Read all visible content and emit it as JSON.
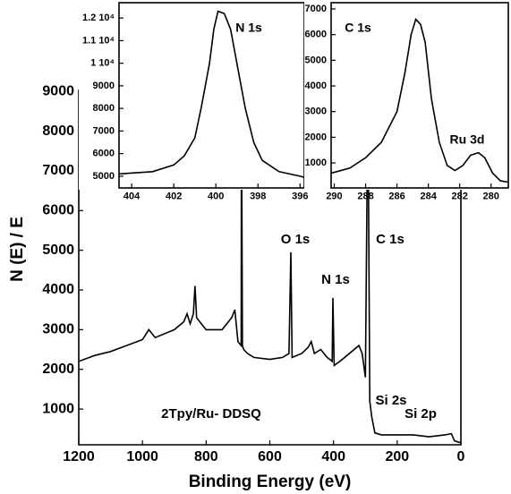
{
  "chart_data": [
    {
      "type": "line",
      "xlabel": "Binding Energy (eV)",
      "ylabel": "N (E) / E",
      "xlim": [
        1200,
        0
      ],
      "ylim": [
        100,
        9050
      ],
      "xticks": [
        1200,
        1000,
        800,
        600,
        400,
        200,
        0
      ],
      "yticks": [
        1000,
        2000,
        3000,
        4000,
        5000,
        6000,
        7000,
        8000,
        9000
      ],
      "annotations": [
        "O 1s",
        "C 1s",
        "N 1s",
        "Si 2s",
        "Si 2p",
        "2Tpy/Ru- DDSQ"
      ],
      "x": [
        1200,
        1150,
        1100,
        1050,
        1000,
        980,
        960,
        900,
        870,
        860,
        850,
        840,
        835,
        830,
        800,
        750,
        720,
        710,
        700,
        690,
        689,
        686,
        682,
        670,
        650,
        600,
        560,
        540,
        534,
        530,
        500,
        480,
        470,
        460,
        440,
        420,
        404,
        402,
        398,
        380,
        320,
        310,
        300,
        292,
        286,
        280,
        270,
        250,
        200,
        150,
        100,
        50,
        30,
        20,
        0
      ],
      "series": [
        {
          "color": "#000000",
          "values": [
            2200,
            2350,
            2450,
            2600,
            2750,
            3000,
            2800,
            3000,
            3200,
            3400,
            3150,
            3400,
            4100,
            3300,
            3000,
            3000,
            3300,
            3500,
            2700,
            2600,
            9000,
            2600,
            2500,
            2400,
            2300,
            2250,
            2300,
            2400,
            4950,
            2300,
            2400,
            2550,
            2700,
            2400,
            2500,
            2300,
            2200,
            3800,
            2100,
            2200,
            2600,
            2400,
            1800,
            9000,
            1200,
            800,
            400,
            350,
            350,
            350,
            300,
            350,
            380,
            200,
            150
          ]
        }
      ]
    },
    {
      "type": "line",
      "xlim": [
        404.6,
        395.8
      ],
      "ylim": [
        4480,
        12680
      ],
      "xticks": [
        404,
        402,
        400,
        398,
        396
      ],
      "yticks": [
        5000,
        6000,
        7000,
        8000,
        9000,
        {
          "value": 10000,
          "label": "1 10⁴"
        },
        {
          "value": 11000,
          "label": "1.1 10⁴"
        },
        {
          "value": 12000,
          "label": "1.2 10⁴"
        }
      ],
      "annotations": [
        "N 1s"
      ],
      "x": [
        404.6,
        403,
        402,
        401.5,
        401,
        400.7,
        400.3,
        400.1,
        399.9,
        399.6,
        399.3,
        399,
        398.6,
        398.2,
        397.8,
        397,
        396,
        395.8
      ],
      "series": [
        {
          "color": "#000000",
          "values": [
            5100,
            5200,
            5500,
            5900,
            6700,
            8000,
            10000,
            11500,
            12300,
            12200,
            11500,
            10000,
            8000,
            6500,
            5700,
            5200,
            5000,
            4950
          ]
        }
      ]
    },
    {
      "type": "line",
      "xlim": [
        290.2,
        278.9
      ],
      "ylim": [
        25,
        7244
      ],
      "xticks": [
        290,
        288,
        286,
        284,
        282,
        280
      ],
      "yticks": [
        1000,
        2000,
        3000,
        4000,
        5000,
        6000,
        7000
      ],
      "annotations": [
        "C 1s",
        "Ru 3d"
      ],
      "x": [
        290.2,
        289,
        288,
        287,
        286,
        285.5,
        285.1,
        284.8,
        284.5,
        284.2,
        283.8,
        283.3,
        282.8,
        282.3,
        281.8,
        281.3,
        280.8,
        280.4,
        279.9,
        279.4,
        278.9
      ],
      "series": [
        {
          "color": "#000000",
          "values": [
            600,
            800,
            1200,
            1800,
            3000,
            4500,
            6000,
            6600,
            6400,
            5700,
            3500,
            1800,
            900,
            700,
            900,
            1300,
            1400,
            1200,
            600,
            300,
            250
          ]
        }
      ]
    }
  ]
}
